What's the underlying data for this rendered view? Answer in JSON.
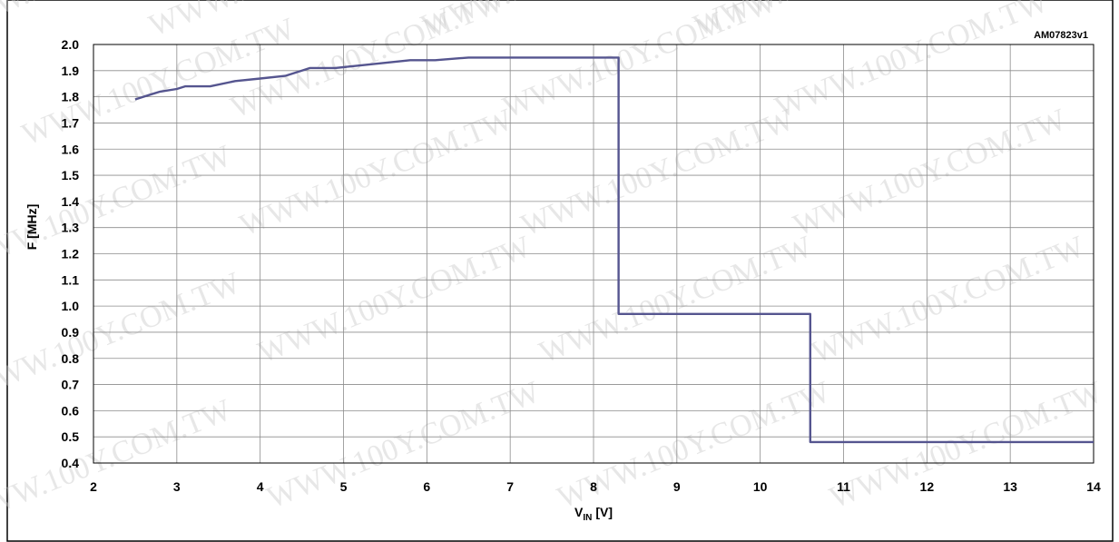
{
  "figure_id": "AM07823v1",
  "watermark": "WWW.100Y.COM.TW",
  "colors": {
    "line": "#55558f",
    "grid": "#8c8c8c",
    "frame": "#000000"
  },
  "chart_data": {
    "type": "line",
    "title": "",
    "xlabel": "V",
    "xlabel_sub": "IN",
    "xlabel_unit": "[V]",
    "ylabel": "F [MHz]",
    "xlim": [
      2,
      14
    ],
    "ylim": [
      0.4,
      2.0
    ],
    "xticks": [
      2,
      3,
      4,
      5,
      6,
      7,
      8,
      9,
      10,
      11,
      12,
      13,
      14
    ],
    "yticks": [
      0.4,
      0.5,
      0.6,
      0.7,
      0.8,
      0.9,
      1.0,
      1.1,
      1.2,
      1.3,
      1.4,
      1.5,
      1.6,
      1.7,
      1.8,
      1.9,
      2.0
    ],
    "grid": true,
    "series": [
      {
        "x": [
          2.5,
          2.7,
          2.8,
          3.0,
          3.1,
          3.4,
          3.7,
          4.0,
          4.3,
          4.6,
          4.9,
          5.2,
          5.5,
          5.8,
          6.1,
          6.5,
          7.0,
          7.5,
          8.0,
          8.3,
          8.3,
          9.0,
          10.0,
          10.6,
          10.6,
          11.0,
          12.0,
          13.0,
          14.0
        ],
        "y": [
          1.79,
          1.81,
          1.82,
          1.83,
          1.84,
          1.84,
          1.86,
          1.87,
          1.88,
          1.91,
          1.91,
          1.92,
          1.93,
          1.94,
          1.94,
          1.95,
          1.95,
          1.95,
          1.95,
          1.95,
          0.97,
          0.97,
          0.97,
          0.97,
          0.48,
          0.48,
          0.48,
          0.48,
          0.48
        ]
      }
    ]
  }
}
